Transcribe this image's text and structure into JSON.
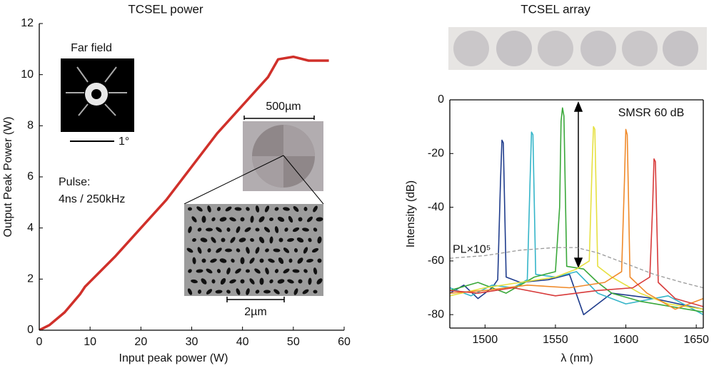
{
  "chart_data": [
    {
      "type": "line",
      "title": "TCSEL power",
      "x_label": "Input peak power (W)",
      "y_label": "Output Peak Power (W)",
      "x": [
        0,
        2,
        5,
        8,
        9,
        12,
        15,
        20,
        25,
        30,
        35,
        40,
        45,
        47,
        50,
        53,
        57
      ],
      "series": [
        {
          "color": "#d0302a",
          "values": [
            0,
            0.2,
            0.7,
            1.4,
            1.7,
            2.3,
            2.9,
            4.0,
            5.1,
            6.4,
            7.7,
            8.8,
            9.9,
            10.6,
            10.7,
            10.55,
            10.55
          ]
        }
      ],
      "xlim": [
        0,
        60
      ],
      "xticks": [
        0,
        10,
        20,
        30,
        40,
        50,
        60
      ],
      "ylim": [
        0,
        12
      ],
      "yticks": [
        0,
        2,
        4,
        6,
        8,
        10,
        12
      ],
      "annotations": [
        "Far field",
        "1°",
        "Pulse:",
        "4ns / 250kHz",
        "500µm",
        "2µm"
      ]
    },
    {
      "type": "line",
      "title": "TCSEL array",
      "x_label": "λ (nm)",
      "y_label": "Intensity (dB)",
      "series": [
        {
          "color": "#1f3c8c",
          "x": [
            1475,
            1485,
            1495,
            1505,
            1509,
            1511,
            1512,
            1513,
            1515,
            1525,
            1545,
            1560,
            1570,
            1590,
            1620,
            1655
          ],
          "values": [
            -72,
            -69,
            -74,
            -70,
            -67,
            -30,
            -15,
            -16,
            -66,
            -68,
            -67,
            -65,
            -80,
            -72,
            -74,
            -78
          ]
        },
        {
          "color": "#35b5c9",
          "x": [
            1475,
            1490,
            1505,
            1520,
            1530,
            1532,
            1533,
            1534,
            1536,
            1550,
            1565,
            1580,
            1600,
            1630,
            1655
          ],
          "values": [
            -70,
            -73,
            -69,
            -70,
            -67,
            -30,
            -12,
            -13,
            -65,
            -66,
            -64,
            -72,
            -76,
            -73,
            -80
          ]
        },
        {
          "color": "#3aa83a",
          "x": [
            1475,
            1495,
            1515,
            1535,
            1550,
            1553,
            1554,
            1555,
            1556,
            1558,
            1570,
            1580,
            1590,
            1610,
            1655
          ],
          "values": [
            -71,
            -68,
            -72,
            -66,
            -64,
            -40,
            -8,
            -3,
            -6,
            -62,
            -63,
            -68,
            -72,
            -75,
            -79
          ]
        },
        {
          "color": "#e6e040",
          "x": [
            1475,
            1500,
            1525,
            1550,
            1565,
            1574,
            1576,
            1577,
            1578,
            1580,
            1590,
            1610,
            1630,
            1655
          ],
          "values": [
            -73,
            -70,
            -68,
            -66,
            -63,
            -60,
            -25,
            -10,
            -11,
            -62,
            -66,
            -72,
            -76,
            -78
          ]
        },
        {
          "color": "#f08a2a",
          "x": [
            1475,
            1500,
            1530,
            1560,
            1585,
            1597,
            1599,
            1600,
            1601,
            1603,
            1615,
            1635,
            1655
          ],
          "values": [
            -72,
            -71,
            -69,
            -70,
            -68,
            -64,
            -30,
            -11,
            -13,
            -66,
            -72,
            -78,
            -74
          ]
        },
        {
          "color": "#d83a3a",
          "x": [
            1475,
            1495,
            1520,
            1550,
            1580,
            1605,
            1617,
            1619,
            1620,
            1621,
            1623,
            1635,
            1655
          ],
          "values": [
            -71,
            -72,
            -70,
            -73,
            -71,
            -70,
            -66,
            -40,
            -22,
            -23,
            -68,
            -74,
            -77
          ]
        },
        {
          "name": "PL×10⁵",
          "color": "#999999",
          "dashed": true,
          "x": [
            1475,
            1500,
            1525,
            1550,
            1565,
            1580,
            1600,
            1620,
            1640,
            1655
          ],
          "values": [
            -59,
            -58,
            -56,
            -55,
            -55,
            -57,
            -61,
            -65,
            -68,
            -70
          ]
        }
      ],
      "xlim": [
        1475,
        1655
      ],
      "xticks": [
        1500,
        1550,
        1600,
        1650
      ],
      "ylim": [
        -85,
        0
      ],
      "yticks": [
        0,
        -20,
        -40,
        -60,
        -80
      ],
      "annotations": [
        "SMSR 60 dB"
      ]
    }
  ]
}
